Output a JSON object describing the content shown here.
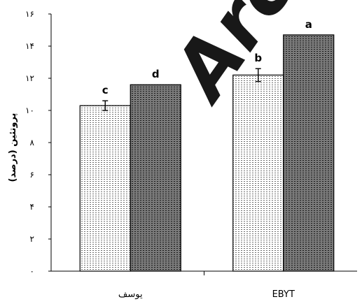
{
  "chart_data": {
    "type": "bar",
    "categories": [
      "یوسف",
      "EBYT"
    ],
    "series": [
      {
        "values": [
          10.3,
          12.2
        ],
        "errors": [
          0.3,
          0.4
        ],
        "pattern": "dotted"
      },
      {
        "values": [
          11.6,
          14.7
        ],
        "errors": [
          0,
          0
        ],
        "pattern": "dark-dotted"
      }
    ],
    "group_letters": [
      [
        "c",
        "d"
      ],
      [
        "b",
        "a"
      ]
    ],
    "ylabel": "پروتئین (درصد)",
    "xlabel": "",
    "title": "",
    "ylim": [
      0,
      16
    ],
    "yticks": [
      0,
      2,
      4,
      6,
      8,
      10,
      12,
      14,
      16
    ],
    "ytick_labels": [
      "۰",
      "۲",
      "۴",
      "۶",
      "۸",
      "۱۰",
      "۱۲",
      "۱۴",
      "۱۶"
    ],
    "grid": false,
    "legend": "none"
  },
  "watermark": {
    "text": "Arc",
    "color": "#dcdcdc"
  },
  "colors": {
    "axis": "#000000",
    "bar_light": "#ffffff",
    "bar_dark": "#7a7a7a",
    "dot_light": "#6e6e6e",
    "dot_dark": "#1a1a1a"
  }
}
